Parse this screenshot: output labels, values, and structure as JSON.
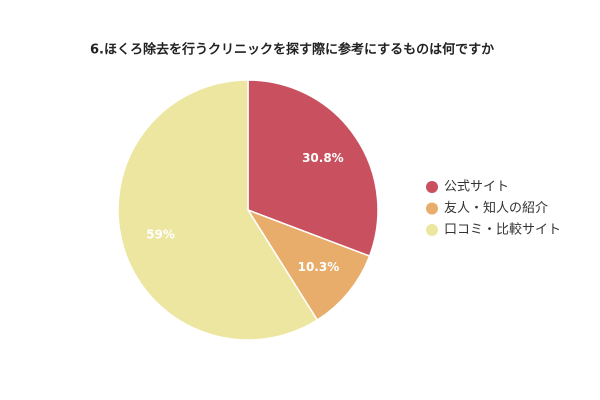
{
  "chart_data": {
    "type": "pie",
    "title": "6.ほくろ除去を行うクリニックを探す際に参考にするものは何ですか",
    "categories": [
      "公式サイト",
      "友人・知人の紹介",
      "口コミ・比較サイト"
    ],
    "values": [
      30.8,
      10.3,
      59
    ],
    "value_labels": [
      "30.8%",
      "10.3%",
      "59%"
    ],
    "colors": [
      "#c9505f",
      "#e8ad6a",
      "#ede6a0"
    ],
    "legend": "right"
  }
}
